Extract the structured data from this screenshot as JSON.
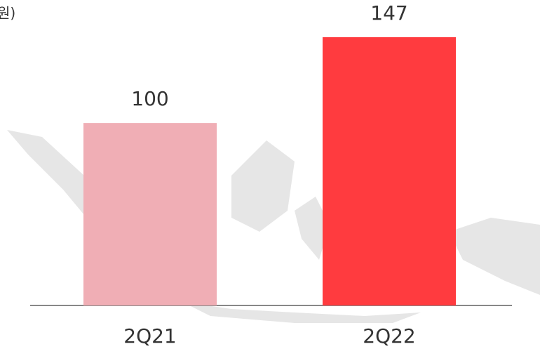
{
  "chart_data": {
    "type": "bar",
    "unit": "원)",
    "categories": [
      "2Q21",
      "2Q22"
    ],
    "values": [
      100,
      147
    ],
    "colors": [
      "#f0aeb5",
      "#ff3b3f"
    ]
  }
}
